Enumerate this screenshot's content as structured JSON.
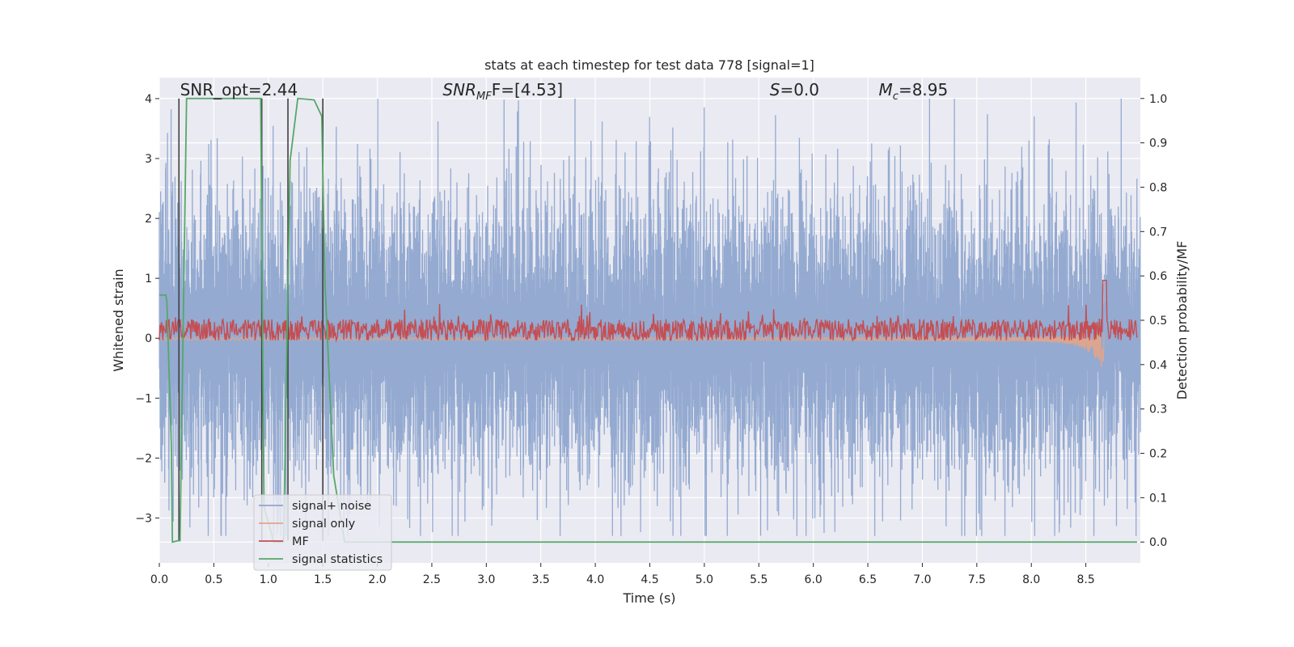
{
  "chart_data": {
    "type": "line",
    "title": "stats at each timestep for test data 778 [signal=1]",
    "xlabel": "Time (s)",
    "ylabel_left": "Whitened strain",
    "ylabel_right": "Detection probability/MF",
    "xlim": [
      0.0,
      9.0
    ],
    "ylim_left": [
      -3.75,
      4.35
    ],
    "ylim_right": [
      -0.047,
      1.047
    ],
    "x_ticks": [
      "0.0",
      "0.5",
      "1.0",
      "1.5",
      "2.0",
      "2.5",
      "3.0",
      "3.5",
      "4.0",
      "4.5",
      "5.0",
      "5.5",
      "6.0",
      "6.5",
      "7.0",
      "7.5",
      "8.0",
      "8.5"
    ],
    "y_ticks_left": [
      "4",
      "3",
      "2",
      "1",
      "0",
      "−1",
      "−2",
      "−3"
    ],
    "y_ticks_right": [
      "1.0",
      "0.9",
      "0.8",
      "0.7",
      "0.6",
      "0.5",
      "0.4",
      "0.3",
      "0.2",
      "0.1",
      "0.0"
    ],
    "grid": true,
    "legend_position": "lower-left",
    "annotations": [
      {
        "text": "SNR_opt=2.44",
        "x": 0.19,
        "y_right": 1.003
      },
      {
        "text_main": "SNR",
        "text_sub": "MF",
        "text_tail": "F=[4.53]",
        "x": 2.6,
        "y_right": 1.003
      },
      {
        "text_main": "S",
        "text_sub": "",
        "text_tail": "=0.0",
        "x": 5.6,
        "y_right": 1.003
      },
      {
        "text_main": "M",
        "text_sub": "c",
        "text_tail": "=8.95",
        "x": 6.6,
        "y_right": 1.003
      }
    ],
    "series": [
      {
        "name": "signal+ noise",
        "color": "#8fa6cf",
        "axis": "left",
        "kind": "noise",
        "amplitude_envelope": [
          -3.3,
          4.0
        ]
      },
      {
        "name": "signal only",
        "color": "#e3a488",
        "axis": "left",
        "kind": "chirp",
        "merger_time": 8.67,
        "peak_amplitude": -0.35
      },
      {
        "name": "MF",
        "color": "#c44e52",
        "axis": "right",
        "kind": "mf",
        "baseline": 0.47,
        "max": 0.59,
        "x_end": 8.97
      },
      {
        "name": "signal statistics",
        "color": "#55a868",
        "axis": "right",
        "kind": "line",
        "x": [
          0.0,
          0.06,
          0.07,
          0.11,
          0.12,
          0.17,
          0.19,
          0.25,
          0.93,
          0.96,
          1.05,
          1.14,
          1.2,
          1.27,
          1.42,
          1.49,
          1.52,
          1.6,
          1.7,
          8.97
        ],
        "y": [
          0.557,
          0.557,
          0.54,
          0.22,
          0.0,
          0.003,
          0.003,
          1.0,
          1.0,
          0.08,
          0.0,
          0.0,
          0.86,
          1.0,
          0.997,
          0.96,
          0.58,
          0.15,
          0.0,
          0.0
        ]
      }
    ],
    "vertical_markers": [
      0.18,
      0.94,
      1.18,
      1.5
    ],
    "marker_color": "#404040"
  }
}
